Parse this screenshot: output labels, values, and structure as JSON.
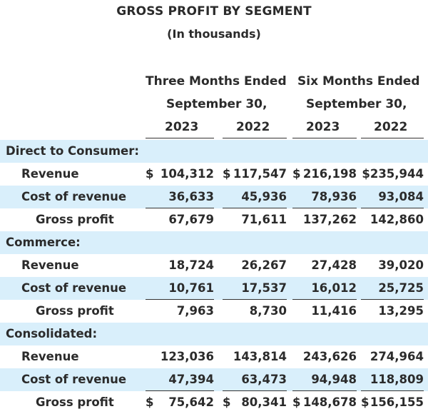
{
  "title": "GROSS PROFIT BY SEGMENT",
  "subtitle": "(In thousands)",
  "headers": {
    "three_months": "Three Months Ended",
    "six_months": "Six Months Ended",
    "period_end": "September 30,",
    "years": [
      "2023",
      "2022",
      "2023",
      "2022"
    ]
  },
  "colors": {
    "band": "#d9effb",
    "text": "#2b2b2b",
    "rule": "#333333"
  },
  "rows": [
    {
      "label": "Direct to Consumer:",
      "section": true,
      "band": true
    },
    {
      "label": "Revenue",
      "values": [
        {
          "cur": "$",
          "num": "104,312"
        },
        {
          "cur": "$",
          "num": "117,547"
        },
        {
          "cur": "$",
          "num": "216,198"
        },
        {
          "cur": "",
          "num": "$235,944"
        }
      ]
    },
    {
      "label": "Cost of revenue",
      "band": true,
      "rule_below": true,
      "values": [
        {
          "num": "36,633"
        },
        {
          "num": "45,936"
        },
        {
          "num": "78,936"
        },
        {
          "num": "93,084"
        }
      ]
    },
    {
      "label": "Gross profit",
      "indent2": true,
      "values": [
        {
          "num": "67,679"
        },
        {
          "num": "71,611"
        },
        {
          "num": "137,262"
        },
        {
          "num": "142,860"
        }
      ]
    },
    {
      "label": "Commerce:",
      "section": true,
      "band": true
    },
    {
      "label": "Revenue",
      "values": [
        {
          "num": "18,724"
        },
        {
          "num": "26,267"
        },
        {
          "num": "27,428"
        },
        {
          "num": "39,020"
        }
      ]
    },
    {
      "label": "Cost of revenue",
      "band": true,
      "rule_below": true,
      "values": [
        {
          "num": "10,761"
        },
        {
          "num": "17,537"
        },
        {
          "num": "16,012"
        },
        {
          "num": "25,725"
        }
      ]
    },
    {
      "label": "Gross profit",
      "indent2": true,
      "values": [
        {
          "num": "7,963"
        },
        {
          "num": "8,730"
        },
        {
          "num": "11,416"
        },
        {
          "num": "13,295"
        }
      ]
    },
    {
      "label": "Consolidated:",
      "section": true,
      "band": true
    },
    {
      "label": "Revenue",
      "values": [
        {
          "num": "123,036"
        },
        {
          "num": "143,814"
        },
        {
          "num": "243,626"
        },
        {
          "num": "274,964"
        }
      ]
    },
    {
      "label": "Cost of revenue",
      "band": true,
      "rule_below": true,
      "values": [
        {
          "num": "47,394"
        },
        {
          "num": "63,473"
        },
        {
          "num": "94,948"
        },
        {
          "num": "118,809"
        }
      ]
    },
    {
      "label": "Gross profit",
      "indent2": true,
      "values": [
        {
          "cur": "$",
          "num": "75,642"
        },
        {
          "cur": "$",
          "num": "80,341"
        },
        {
          "cur": "$",
          "num": "148,678"
        },
        {
          "cur": "$",
          "num": "156,155"
        }
      ]
    }
  ]
}
